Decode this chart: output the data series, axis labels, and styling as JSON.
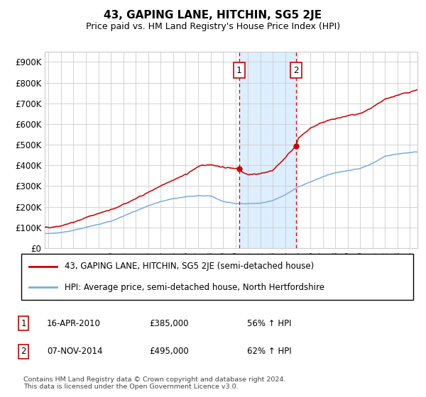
{
  "title": "43, GAPING LANE, HITCHIN, SG5 2JE",
  "subtitle": "Price paid vs. HM Land Registry's House Price Index (HPI)",
  "ylim": [
    0,
    950000
  ],
  "yticks": [
    0,
    100000,
    200000,
    300000,
    400000,
    500000,
    600000,
    700000,
    800000,
    900000
  ],
  "ytick_labels": [
    "£0",
    "£100K",
    "£200K",
    "£300K",
    "£400K",
    "£500K",
    "£600K",
    "£700K",
    "£800K",
    "£900K"
  ],
  "xlim_start": 1994.7,
  "xlim_end": 2024.6,
  "sale1_date": 2010.29,
  "sale1_price": 385000,
  "sale1_label": "1",
  "sale1_text": "16-APR-2010",
  "sale1_amount": "£385,000",
  "sale1_hpi": "56% ↑ HPI",
  "sale2_date": 2014.85,
  "sale2_price": 495000,
  "sale2_label": "2",
  "sale2_text": "07-NOV-2014",
  "sale2_amount": "£495,000",
  "sale2_hpi": "62% ↑ HPI",
  "property_line_color": "#cc0000",
  "hpi_line_color": "#7aaddc",
  "highlight_color": "#ddeeff",
  "legend_property": "43, GAPING LANE, HITCHIN, SG5 2JE (semi-detached house)",
  "legend_hpi": "HPI: Average price, semi-detached house, North Hertfordshire",
  "footer": "Contains HM Land Registry data © Crown copyright and database right 2024.\nThis data is licensed under the Open Government Licence v3.0.",
  "background_color": "#ffffff",
  "grid_color": "#cccccc",
  "prop_knots_x": [
    1995,
    1996,
    1997,
    1998,
    1999,
    2000,
    2001,
    2002,
    2003,
    2004,
    2005,
    2006,
    2007,
    2008,
    2009,
    2010.29,
    2010.5,
    2011,
    2012,
    2013,
    2014.85,
    2015,
    2016,
    2017,
    2018,
    2019,
    2020,
    2021,
    2022,
    2023,
    2024,
    2024.5
  ],
  "prop_knots_y": [
    100000,
    108000,
    125000,
    148000,
    168000,
    185000,
    210000,
    240000,
    270000,
    300000,
    330000,
    355000,
    395000,
    405000,
    390000,
    385000,
    370000,
    355000,
    360000,
    375000,
    495000,
    530000,
    580000,
    610000,
    625000,
    640000,
    650000,
    680000,
    720000,
    740000,
    755000,
    765000
  ],
  "hpi_knots_x": [
    1995,
    1996,
    1997,
    1998,
    1999,
    2000,
    2001,
    2002,
    2003,
    2004,
    2005,
    2006,
    2007,
    2008,
    2009,
    2010,
    2011,
    2012,
    2013,
    2014,
    2015,
    2016,
    2017,
    2018,
    2019,
    2020,
    2021,
    2022,
    2023,
    2024,
    2024.5
  ],
  "hpi_knots_y": [
    70000,
    75000,
    86000,
    100000,
    115000,
    130000,
    155000,
    180000,
    205000,
    225000,
    240000,
    248000,
    253000,
    252000,
    225000,
    215000,
    215000,
    218000,
    230000,
    258000,
    295000,
    320000,
    345000,
    365000,
    375000,
    385000,
    410000,
    445000,
    455000,
    462000,
    465000
  ]
}
